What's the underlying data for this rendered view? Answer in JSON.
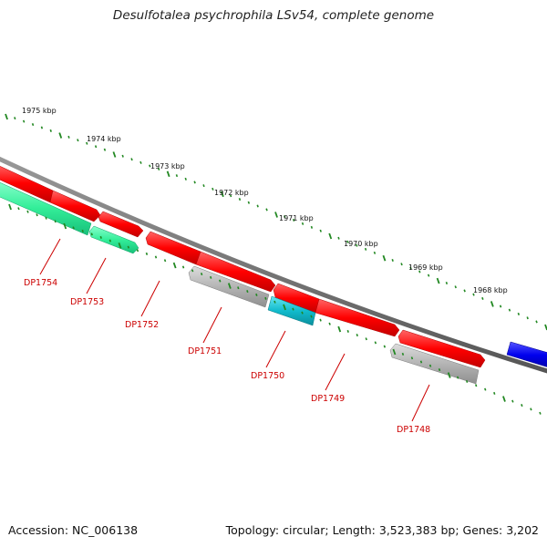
{
  "title": "Desulfotalea psychrophila LSv54, complete genome",
  "footer": {
    "accession": "Accession: NC_006138",
    "summary": "Topology: circular; Length: 3,523,383 bp; Genes: 3,202"
  },
  "ruler": {
    "labels": [
      "1975 kbp",
      "1974 kbp",
      "1973 kbp",
      "1972 kbp",
      "1971 kbp",
      "1970 kbp",
      "1969 kbp",
      "1968 kbp"
    ]
  },
  "genes": [
    {
      "label": "DP1754",
      "color": "#ff0000"
    },
    {
      "label": "DP1753",
      "color": "#33ee99"
    },
    {
      "label": "DP1752",
      "color": "#ff0000"
    },
    {
      "label": "DP1751",
      "color": "#aaaaaa"
    },
    {
      "label": "DP1750",
      "color": "#11bbcc"
    },
    {
      "label": "DP1749",
      "color": "#ff0000"
    },
    {
      "label": "DP1748",
      "color": "#aaaaaa"
    }
  ],
  "colors": {
    "backbone": "#777777",
    "tick": "#228822",
    "gene_label": "#cc0000",
    "blue_feature": "#0000ee"
  }
}
